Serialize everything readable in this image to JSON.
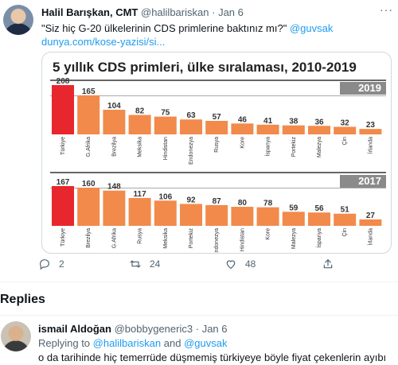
{
  "tweet": {
    "display_name": "Halil Barışkan, CMT",
    "handle": "@halilbariskan",
    "separator": "·",
    "time": "Jan 6",
    "text_quote": "\"Siz hiç G-20 ülkelerinin CDS primlerine baktınız mı?\"",
    "mention": "@guvsak",
    "link": "dunya.com/kose-yazisi/si...",
    "more_icon": "more-horizontal-icon",
    "actions": {
      "reply_count": "2",
      "retweet_count": "24",
      "like_count": "48"
    }
  },
  "chart_data": [
    {
      "type": "bar",
      "title": "5 yıllık CDS primleri, ülke sıralaması, 2010-2019",
      "panel_label": "2019",
      "categories": [
        "Türkiye",
        "G.Afrika",
        "Brezilya",
        "Meksika",
        "Hindistan",
        "Endonezya",
        "Rusya",
        "Kore",
        "İspanya",
        "Portekiz",
        "Malezya",
        "Çin",
        "İrlanda"
      ],
      "values": [
        208,
        165,
        104,
        82,
        75,
        63,
        57,
        46,
        41,
        38,
        36,
        32,
        23
      ],
      "highlight_color": "#e8262d",
      "bar_color": "#f28a4b"
    },
    {
      "type": "bar",
      "panel_label": "2017",
      "categories": [
        "Türkiye",
        "Brezilya",
        "G.Afrika",
        "Rusya",
        "Meksika",
        "Portekiz",
        "Endonezya",
        "Hindistan",
        "Kore",
        "Malezya",
        "İspanya",
        "Çin",
        "İrlanda"
      ],
      "values": [
        167,
        160,
        148,
        117,
        106,
        92,
        87,
        80,
        78,
        59,
        56,
        51,
        27
      ],
      "highlight_color": "#e8262d",
      "bar_color": "#f28a4b"
    }
  ],
  "replies": {
    "title": "Replies",
    "items": [
      {
        "display_name": "ismail Aldoğan",
        "handle": "@bobbygeneric3",
        "separator": "·",
        "time": "Jan 6",
        "replying_prefix": "Replying to",
        "replying_to_1": "@halilbariskan",
        "replying_and": "and",
        "replying_to_2": "@guvsak",
        "text": "o da tarihinde hiç temerrüde düşmemiş türkiyeye böyle fiyat çekenlerin ayıbı"
      }
    ]
  }
}
